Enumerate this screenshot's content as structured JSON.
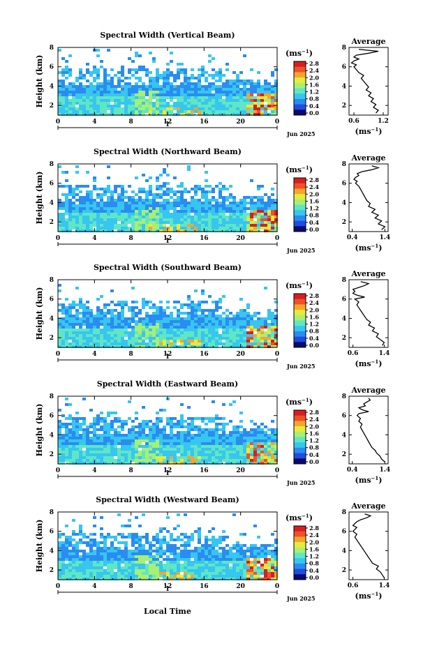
{
  "colorbar": {
    "unit_label": "(ms",
    "unit_sup": "−1",
    "unit_close": ")",
    "ticks": [
      "2.8",
      "2.4",
      "2.0",
      "1.6",
      "1.2",
      "0.8",
      "0.4",
      "0.0"
    ],
    "colors": [
      "#0a0a6e",
      "#1f4de0",
      "#2a8cf0",
      "#36c6f0",
      "#5fe6c4",
      "#a8ef72",
      "#e8ea3a",
      "#f7a52a",
      "#f0502a",
      "#d81e1e"
    ]
  },
  "month_label": "Jun 2025",
  "day_label": "1",
  "avg_unit": "(ms",
  "avg_unit_sup": "−1",
  "avg_unit_close": ")",
  "xaxis_label": "Local Time",
  "colors": {
    "axis": "#000000",
    "profile": "#000000"
  },
  "chart_data": [
    {
      "type": "heatmap",
      "title": "Spectral Width (Vertical Beam)",
      "ylabel": "Height (km)",
      "x_ticks": [
        "0",
        "4",
        "8",
        "12",
        "16",
        "20",
        "0"
      ],
      "y_ticks": [
        "8",
        "6",
        "4",
        "2"
      ],
      "xlim": [
        0,
        24
      ],
      "ylim": [
        1,
        8
      ],
      "avg_title": "Average",
      "avg_ticks": [
        "0.6",
        "1.2"
      ],
      "avg_xlim": [
        0.5,
        1.3
      ],
      "avg_ylim": [
        1,
        8
      ],
      "avg_yticks": [
        "8",
        "6",
        "4",
        "2"
      ],
      "profile": {
        "width": [
          1.05,
          1.1,
          1.0,
          1.05,
          0.95,
          1.0,
          0.9,
          0.95,
          0.85,
          0.9,
          0.85,
          0.8,
          0.75,
          0.8,
          0.7,
          0.65,
          0.6,
          0.65,
          0.55,
          0.6,
          0.7,
          0.6,
          0.65,
          0.9,
          1.1,
          0.7
        ],
        "height": [
          1.2,
          1.5,
          1.8,
          2.1,
          2.4,
          2.7,
          3.0,
          3.3,
          3.6,
          3.9,
          4.2,
          4.5,
          4.8,
          5.1,
          5.4,
          5.7,
          6.0,
          6.2,
          6.4,
          6.6,
          6.8,
          7.0,
          7.2,
          7.4,
          7.6,
          7.8
        ]
      }
    },
    {
      "type": "heatmap",
      "title": "Spectral Width (Northward Beam)",
      "ylabel": "Height (km)",
      "x_ticks": [
        "0",
        "4",
        "8",
        "12",
        "16",
        "20",
        "0"
      ],
      "y_ticks": [
        "8",
        "6",
        "4",
        "2"
      ],
      "xlim": [
        0,
        24
      ],
      "ylim": [
        1,
        8
      ],
      "avg_title": "Average",
      "avg_ticks": [
        "0.4",
        "1.4"
      ],
      "avg_xlim": [
        0.3,
        1.5
      ],
      "avg_ylim": [
        1,
        8
      ],
      "avg_yticks": [
        "8",
        "6",
        "4",
        "2"
      ],
      "profile": {
        "width": [
          1.3,
          1.4,
          1.2,
          1.3,
          1.1,
          1.2,
          1.0,
          1.1,
          0.9,
          0.95,
          0.85,
          0.8,
          0.75,
          0.7,
          0.65,
          0.6,
          0.5,
          0.55,
          0.45,
          0.5,
          0.6,
          0.55,
          0.7,
          1.0,
          1.2,
          1.0
        ],
        "height": [
          1.2,
          1.5,
          1.8,
          2.1,
          2.4,
          2.7,
          3.0,
          3.3,
          3.6,
          3.9,
          4.2,
          4.5,
          4.8,
          5.1,
          5.4,
          5.7,
          6.0,
          6.2,
          6.4,
          6.6,
          6.8,
          7.0,
          7.2,
          7.4,
          7.6,
          7.8
        ]
      }
    },
    {
      "type": "heatmap",
      "title": "Spectral Width (Southward Beam)",
      "ylabel": "Height (km)",
      "x_ticks": [
        "0",
        "4",
        "8",
        "12",
        "16",
        "20",
        "0"
      ],
      "y_ticks": [
        "8",
        "6",
        "4",
        "2"
      ],
      "xlim": [
        0,
        24
      ],
      "ylim": [
        1,
        8
      ],
      "avg_title": "Average",
      "avg_ticks": [
        "0.6",
        "1.4"
      ],
      "avg_xlim": [
        0.5,
        1.5
      ],
      "avg_ylim": [
        1,
        8
      ],
      "avg_yticks": [
        "8",
        "6",
        "4",
        "2"
      ],
      "profile": {
        "width": [
          1.35,
          1.4,
          1.3,
          1.2,
          1.25,
          1.1,
          1.15,
          1.0,
          1.05,
          0.95,
          0.9,
          0.85,
          0.8,
          0.75,
          0.7,
          0.75,
          0.65,
          0.9,
          0.7,
          0.6,
          0.65,
          0.6,
          0.75,
          0.9,
          1.0,
          0.8
        ],
        "height": [
          1.2,
          1.5,
          1.8,
          2.1,
          2.4,
          2.7,
          3.0,
          3.3,
          3.6,
          3.9,
          4.2,
          4.5,
          4.8,
          5.1,
          5.4,
          5.7,
          6.0,
          6.2,
          6.4,
          6.6,
          6.8,
          7.0,
          7.2,
          7.4,
          7.6,
          7.8
        ]
      }
    },
    {
      "type": "heatmap",
      "title": "Spectral Width (Eastward Beam)",
      "ylabel": "Height (km)",
      "x_ticks": [
        "0",
        "4",
        "8",
        "12",
        "16",
        "20",
        "0"
      ],
      "y_ticks": [
        "8",
        "6",
        "4",
        "2"
      ],
      "xlim": [
        0,
        24
      ],
      "ylim": [
        1,
        8
      ],
      "avg_title": "Average",
      "avg_ticks": [
        "0.4",
        "1.4"
      ],
      "avg_xlim": [
        0.3,
        1.5
      ],
      "avg_ylim": [
        1,
        8
      ],
      "avg_yticks": [
        "8",
        "6",
        "4",
        "2"
      ],
      "profile": {
        "width": [
          1.4,
          1.3,
          1.25,
          1.15,
          1.1,
          1.0,
          0.95,
          0.9,
          0.85,
          0.8,
          0.75,
          0.7,
          0.65,
          0.7,
          0.6,
          0.65,
          0.55,
          0.6,
          0.9,
          0.7,
          0.6,
          0.8,
          0.75,
          0.85,
          0.95,
          0.9
        ],
        "height": [
          1.2,
          1.5,
          1.8,
          2.1,
          2.4,
          2.7,
          3.0,
          3.3,
          3.6,
          3.9,
          4.2,
          4.5,
          4.8,
          5.1,
          5.4,
          5.7,
          6.0,
          6.2,
          6.4,
          6.6,
          6.8,
          7.0,
          7.2,
          7.4,
          7.6,
          7.8
        ]
      }
    },
    {
      "type": "heatmap",
      "title": "Spectral Width (Westward Beam)",
      "ylabel": "Height (km)",
      "x_ticks": [
        "0",
        "4",
        "8",
        "12",
        "16",
        "20",
        "0"
      ],
      "y_ticks": [
        "8",
        "6",
        "4",
        "2"
      ],
      "xlim": [
        0,
        24
      ],
      "ylim": [
        1,
        8
      ],
      "avg_title": "Average",
      "avg_ticks": [
        "0.6",
        "1.4"
      ],
      "avg_xlim": [
        0.5,
        1.5
      ],
      "avg_ylim": [
        1,
        8
      ],
      "avg_yticks": [
        "8",
        "6",
        "4",
        "2"
      ],
      "profile": {
        "width": [
          1.4,
          1.35,
          1.3,
          1.2,
          1.25,
          1.1,
          1.05,
          1.0,
          0.95,
          0.9,
          0.85,
          0.8,
          0.75,
          0.7,
          0.65,
          0.7,
          0.6,
          0.65,
          0.7,
          0.6,
          0.65,
          0.7,
          0.8,
          0.95,
          1.05,
          0.9
        ],
        "height": [
          1.2,
          1.5,
          1.8,
          2.1,
          2.4,
          2.7,
          3.0,
          3.3,
          3.6,
          3.9,
          4.2,
          4.5,
          4.8,
          5.1,
          5.4,
          5.7,
          6.0,
          6.2,
          6.4,
          6.6,
          6.8,
          7.0,
          7.2,
          7.4,
          7.6,
          7.8
        ]
      }
    }
  ]
}
